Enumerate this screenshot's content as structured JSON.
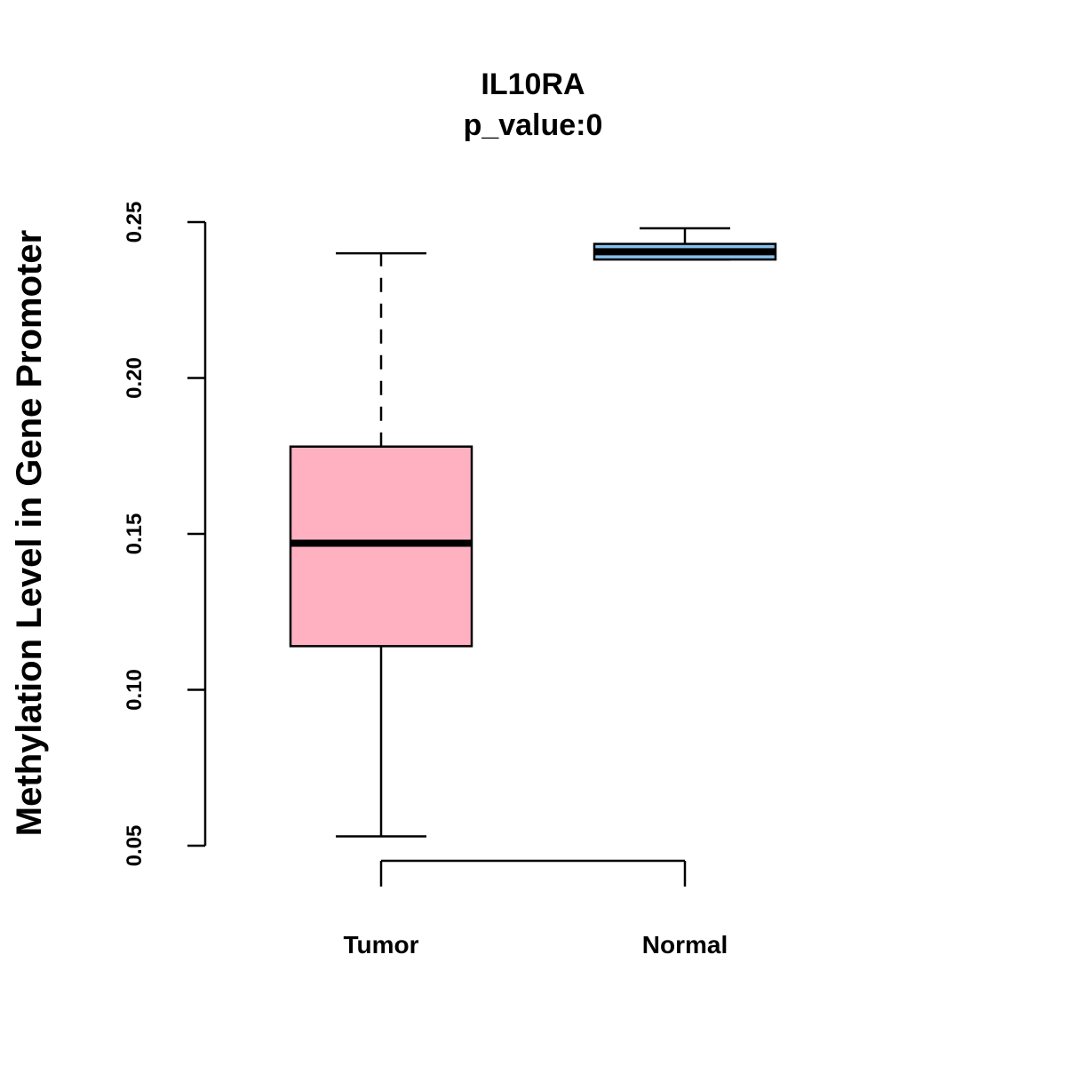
{
  "chart_data": {
    "type": "boxplot",
    "title": "IL10RA",
    "subtitle": "p_value:0",
    "xlabel": "",
    "ylabel": "Methylation Level in Gene Promoter",
    "ylim": [
      0.05,
      0.25
    ],
    "yticks": [
      0.05,
      0.1,
      0.15,
      0.2,
      0.25
    ],
    "ytick_labels": [
      "0.05",
      "0.10",
      "0.15",
      "0.20",
      "0.25"
    ],
    "categories": [
      "Tumor",
      "Normal"
    ],
    "boxes": [
      {
        "name": "Tumor",
        "whisker_low": 0.053,
        "q1": 0.114,
        "median": 0.147,
        "q3": 0.178,
        "whisker_high": 0.24,
        "fill": "#FFB1C2"
      },
      {
        "name": "Normal",
        "whisker_low": 0.238,
        "q1": 0.238,
        "median": 0.2405,
        "q3": 0.243,
        "whisker_high": 0.248,
        "fill": "#86BFEB"
      }
    ],
    "grid": false,
    "legend": "none",
    "colors": {
      "axis": "#000000",
      "background": "#ffffff"
    }
  }
}
